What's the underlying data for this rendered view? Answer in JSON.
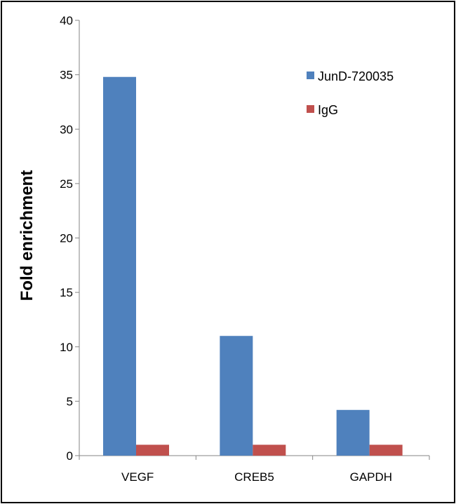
{
  "chart_data": {
    "type": "bar",
    "title": "",
    "xlabel": "",
    "ylabel": "Fold enrichment",
    "ylim": [
      0,
      40
    ],
    "yticks": [
      0,
      5,
      10,
      15,
      20,
      25,
      30,
      35,
      40
    ],
    "categories": [
      "VEGF",
      "CREB5",
      "GAPDH"
    ],
    "series": [
      {
        "name": "JunD-720035",
        "color": "#4f81bd",
        "values": [
          34.8,
          11.0,
          4.2
        ]
      },
      {
        "name": "IgG",
        "color": "#c0504d",
        "values": [
          1.0,
          1.0,
          1.0
        ]
      }
    ],
    "legend_position": "top-right",
    "grid": false
  }
}
